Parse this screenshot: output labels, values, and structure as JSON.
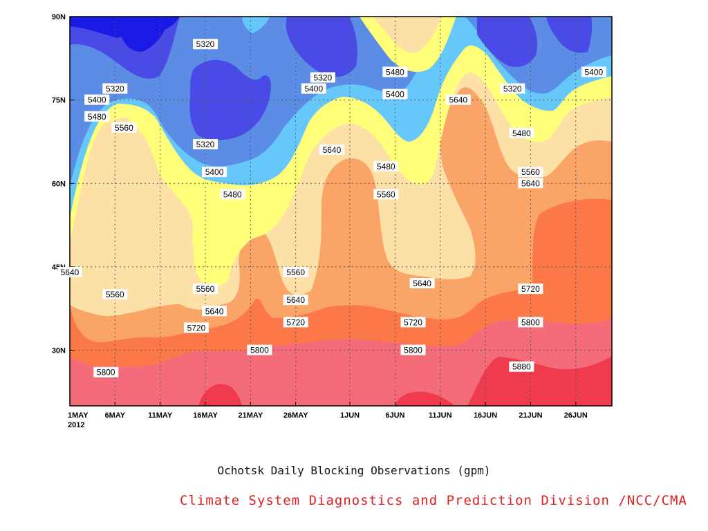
{
  "chart_data": {
    "type": "heatmap",
    "title": "Ochotsk Daily Blocking Observations (gpm)",
    "credit": "Climate System Diagnostics and Prediction Division /NCC/CMA",
    "x_tick_labels": [
      "1MAY",
      "6MAY",
      "11MAY",
      "16MAY",
      "21MAY",
      "26MAY",
      "1JUN",
      "6JUN",
      "11JUN",
      "16JUN",
      "21JUN",
      "26JUN"
    ],
    "x_year_label": "2012",
    "y_tick_labels": [
      "90N",
      "75N",
      "60N",
      "45N",
      "30N"
    ],
    "xlim": [
      "2012-05-01",
      "2012-06-30"
    ],
    "ylim_deg_lat": [
      20,
      90
    ],
    "contour_levels": [
      5320,
      5400,
      5480,
      5560,
      5640,
      5720,
      5800,
      5880
    ],
    "fill_colors": {
      "lt5240": "#1a1ae6",
      "5240_5320": "#4a4ae6",
      "5320_5400": "#5b8de6",
      "5400_5480": "#66c8fa",
      "5480_5560": "#ffff7a",
      "5560_5640": "#fde0a6",
      "5640_5720": "#fba468",
      "5720_5800": "#fc7848",
      "5800_5880": "#f46c7a",
      "gt5880": "#f03a4e"
    },
    "contour_labels": [
      {
        "text": "5320",
        "date": "2012-05-06",
        "lat": 77
      },
      {
        "text": "5320",
        "date": "2012-05-16",
        "lat": 85
      },
      {
        "text": "5320",
        "date": "2012-05-16",
        "lat": 67
      },
      {
        "text": "5320",
        "date": "2012-05-29",
        "lat": 79
      },
      {
        "text": "5320",
        "date": "2012-06-19",
        "lat": 77
      },
      {
        "text": "5400",
        "date": "2012-05-04",
        "lat": 75
      },
      {
        "text": "5400",
        "date": "2012-05-17",
        "lat": 62
      },
      {
        "text": "5400",
        "date": "2012-05-28",
        "lat": 77
      },
      {
        "text": "5400",
        "date": "2012-06-06",
        "lat": 76
      },
      {
        "text": "5400",
        "date": "2012-06-28",
        "lat": 80
      },
      {
        "text": "5480",
        "date": "2012-05-04",
        "lat": 72
      },
      {
        "text": "5480",
        "date": "2012-05-19",
        "lat": 58
      },
      {
        "text": "5480",
        "date": "2012-06-06",
        "lat": 80
      },
      {
        "text": "5480",
        "date": "2012-06-05",
        "lat": 63
      },
      {
        "text": "5480",
        "date": "2012-06-20",
        "lat": 69
      },
      {
        "text": "5560",
        "date": "2012-05-07",
        "lat": 70
      },
      {
        "text": "5560",
        "date": "2012-05-06",
        "lat": 40
      },
      {
        "text": "5560",
        "date": "2012-05-16",
        "lat": 41
      },
      {
        "text": "5560",
        "date": "2012-05-26",
        "lat": 44
      },
      {
        "text": "5560",
        "date": "2012-06-05",
        "lat": 58
      },
      {
        "text": "5560",
        "date": "2012-06-21",
        "lat": 62
      },
      {
        "text": "5640",
        "date": "2012-05-30",
        "lat": 66
      },
      {
        "text": "5640",
        "date": "2012-06-13",
        "lat": 75
      },
      {
        "text": "5640",
        "date": "2012-06-21",
        "lat": 60
      },
      {
        "text": "5640",
        "date": "2012-05-01",
        "lat": 44
      },
      {
        "text": "5640",
        "date": "2012-05-17",
        "lat": 37
      },
      {
        "text": "5640",
        "date": "2012-05-26",
        "lat": 39
      },
      {
        "text": "5640",
        "date": "2012-06-09",
        "lat": 42
      },
      {
        "text": "5720",
        "date": "2012-05-15",
        "lat": 34
      },
      {
        "text": "5720",
        "date": "2012-05-26",
        "lat": 35
      },
      {
        "text": "5720",
        "date": "2012-06-08",
        "lat": 35
      },
      {
        "text": "5720",
        "date": "2012-06-21",
        "lat": 41
      },
      {
        "text": "5800",
        "date": "2012-05-05",
        "lat": 26
      },
      {
        "text": "5800",
        "date": "2012-05-22",
        "lat": 30
      },
      {
        "text": "5800",
        "date": "2012-06-08",
        "lat": 30
      },
      {
        "text": "5800",
        "date": "2012-06-21",
        "lat": 35
      },
      {
        "text": "5880",
        "date": "2012-06-20",
        "lat": 27
      }
    ]
  }
}
